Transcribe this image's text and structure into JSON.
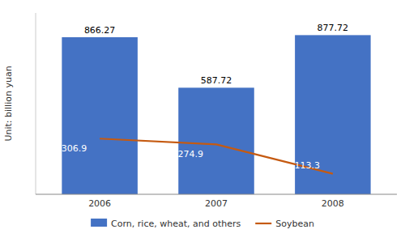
{
  "chart_data": {
    "type": "bar",
    "ylabel": "Unit: billion yuan",
    "categories": [
      "2006",
      "2007",
      "2008"
    ],
    "series": [
      {
        "name": "Corn, rice, wheat, and others",
        "type": "bar",
        "color": "#4472C4",
        "values": [
          866.27,
          587.72,
          877.72
        ]
      },
      {
        "name": "Soybean",
        "type": "line",
        "color": "#C55A11",
        "values": [
          306.9,
          274.9,
          113.3
        ]
      }
    ],
    "ylim": [
      0,
      1000
    ],
    "yticks": [],
    "tick_labels": "x",
    "data_labels": true,
    "legend": "bottom",
    "grid": false
  }
}
